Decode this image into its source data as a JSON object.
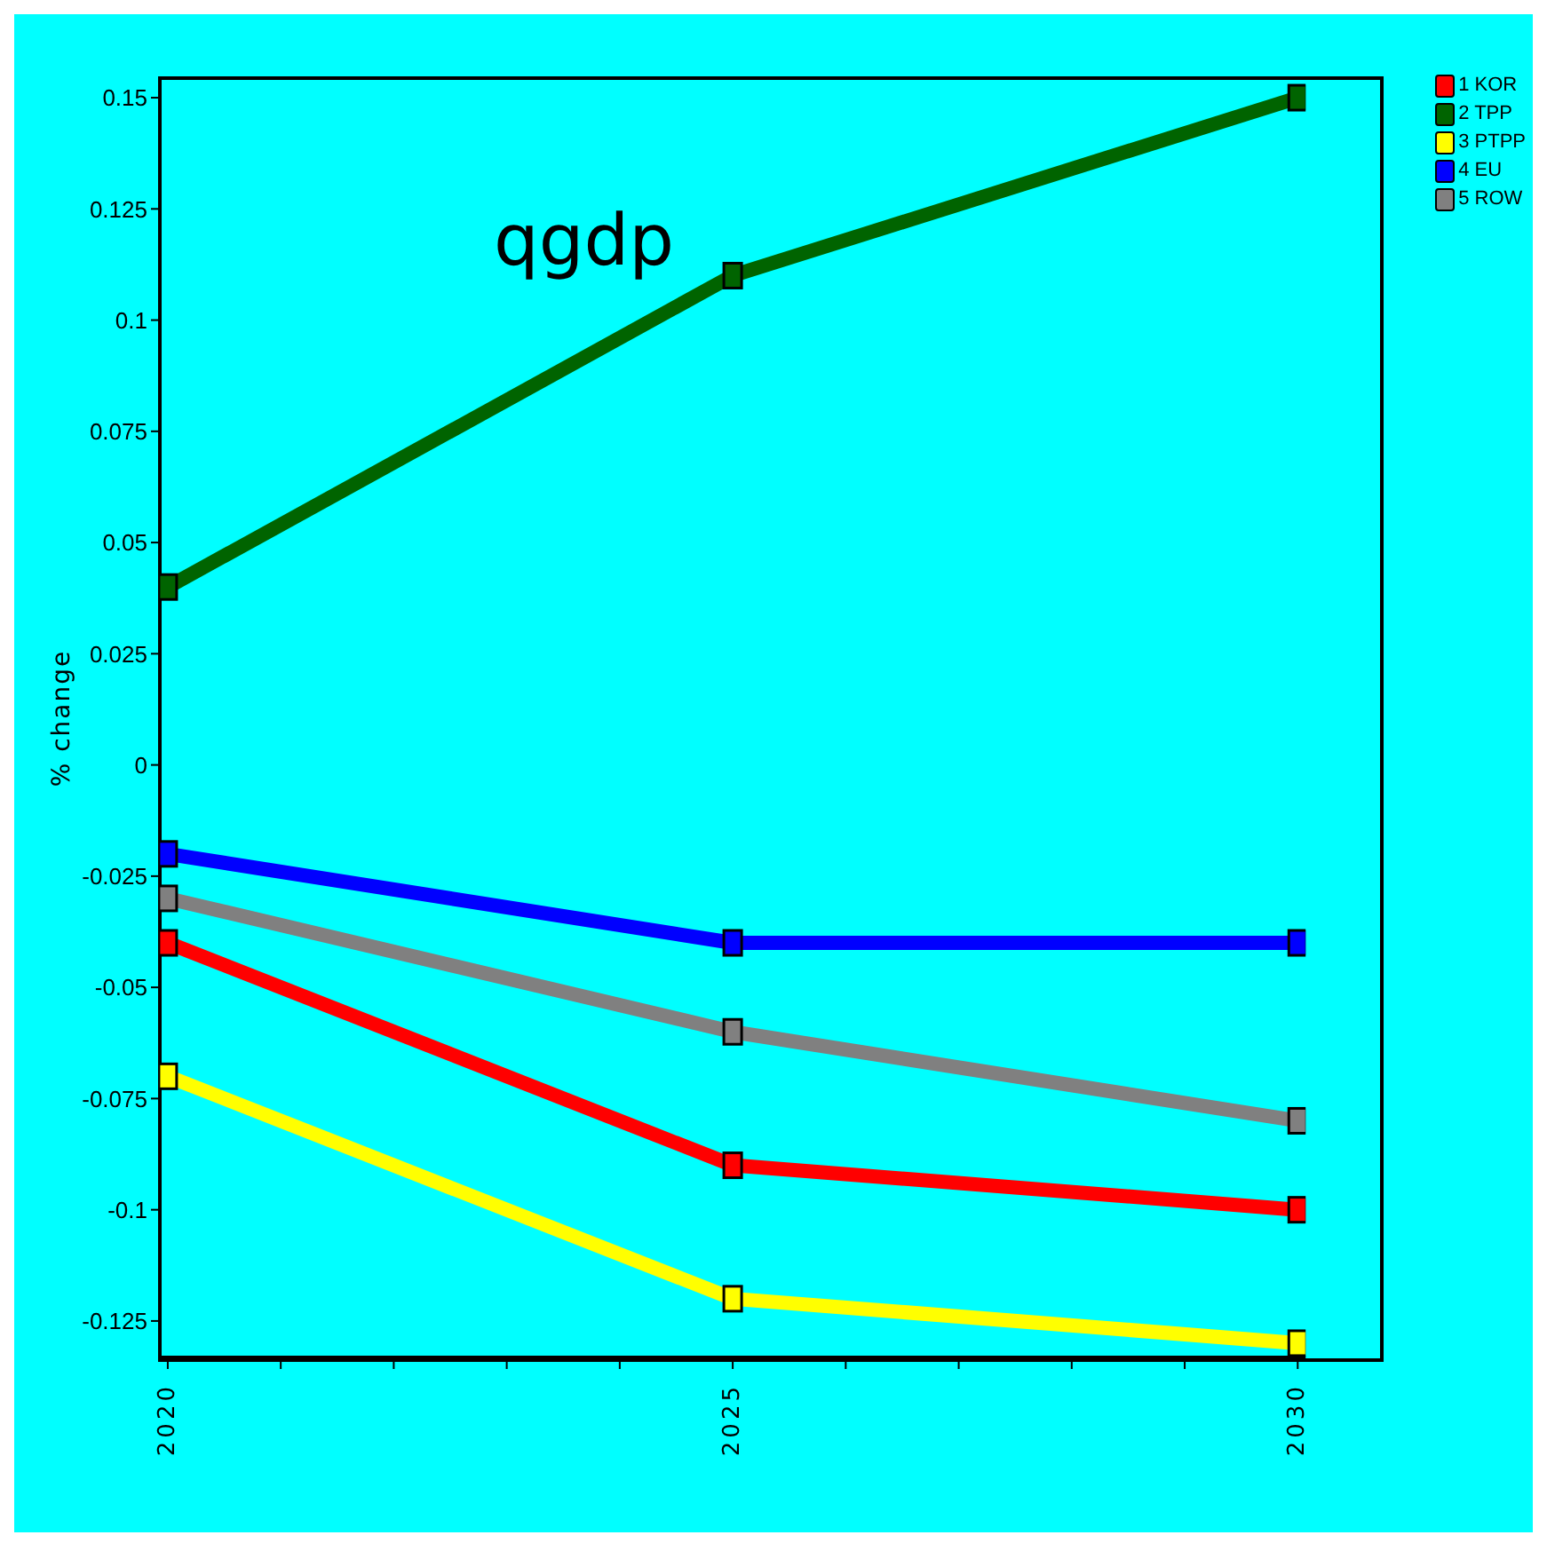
{
  "chart_data": {
    "type": "line",
    "title": "qgdp",
    "ylabel": "% change",
    "x": [
      2020,
      2025,
      2030
    ],
    "series": [
      {
        "name": "1 KOR",
        "color": "#ff0000",
        "values": [
          -0.04,
          -0.09,
          -0.1
        ]
      },
      {
        "name": "2 TPP",
        "color": "#006400",
        "values": [
          0.04,
          0.11,
          0.15
        ]
      },
      {
        "name": "3 PTPP",
        "color": "#ffff00",
        "values": [
          -0.07,
          -0.12,
          -0.13
        ]
      },
      {
        "name": "4 EU",
        "color": "#0000ff",
        "values": [
          -0.02,
          -0.04,
          -0.04
        ]
      },
      {
        "name": "5 ROW",
        "color": "#808080",
        "values": [
          -0.03,
          -0.06,
          -0.08
        ]
      }
    ],
    "xlim": [
      2019.93,
      2030.07
    ],
    "xticks": [
      2020,
      {
        "value": 2021,
        "label": null
      },
      {
        "value": 2022,
        "label": null
      },
      {
        "value": 2023,
        "label": null
      },
      {
        "value": 2024,
        "label": null
      },
      2025,
      {
        "value": 2026,
        "label": null
      },
      {
        "value": 2027,
        "label": null
      },
      {
        "value": 2028,
        "label": null
      },
      {
        "value": 2029,
        "label": null
      },
      2030
    ],
    "ylim": [
      -0.1334,
      0.1544
    ],
    "yticks": [
      -0.125,
      -0.1,
      -0.075,
      -0.05,
      -0.025,
      0,
      0.025,
      0.05,
      0.075,
      0.1,
      0.125,
      0.15
    ],
    "grid": false,
    "legend": "top right",
    "marker": "square",
    "line_style": "solid"
  }
}
